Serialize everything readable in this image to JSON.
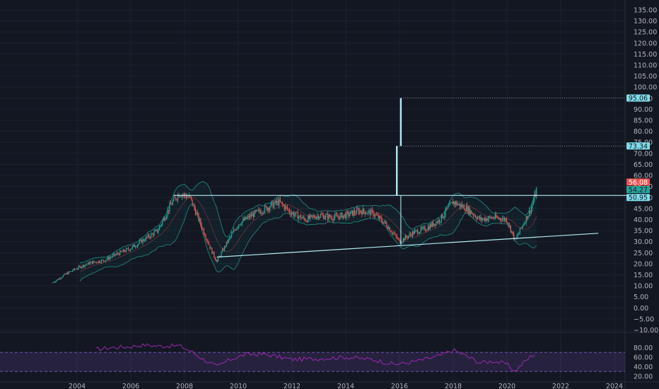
{
  "chart_data": {
    "type": "candlestick",
    "x_ticks": [
      "2004",
      "2006",
      "2008",
      "2010",
      "2012",
      "2014",
      "2016",
      "2018",
      "2020",
      "2022",
      "2024"
    ],
    "y_ticks": [
      "135.00",
      "130.00",
      "125.00",
      "120.00",
      "115.00",
      "110.00",
      "105.00",
      "100.00",
      "95.00",
      "90.00",
      "85.00",
      "80.00",
      "75.00",
      "70.00",
      "65.00",
      "60.00",
      "55.00",
      "50.00",
      "45.00",
      "40.00",
      "35.00",
      "30.00",
      "25.00",
      "20.00",
      "15.00",
      "10.00",
      "5.00",
      "0.00",
      "−5.00",
      "−10.00"
    ],
    "ylim": [
      -10,
      137
    ],
    "xlim": [
      2002.4,
      2024.5
    ],
    "price_tags": [
      {
        "label": "95.06",
        "value": 95.06,
        "color": "#80deea",
        "text_color": "#131722"
      },
      {
        "label": "73.34",
        "value": 73.34,
        "color": "#80deea",
        "text_color": "#131722"
      },
      {
        "label": "56.08",
        "value": 56.08,
        "color": "#ef5350",
        "text_color": "#ffffff"
      },
      {
        "label": "54.27",
        "value": 54.27,
        "color": "#26a69a",
        "text_color": "#131722"
      },
      {
        "label": "50.95",
        "value": 50.95,
        "color": "#80deea",
        "text_color": "#131722"
      }
    ],
    "horizontal_levels": [
      95.06,
      73.34,
      50.95
    ],
    "trendline": {
      "from": [
        2009.2,
        23.0
      ],
      "to": [
        2023.4,
        33.8
      ]
    },
    "resistance_line": {
      "from": [
        2007.6,
        50.95
      ],
      "to": [
        2024.5,
        50.95
      ]
    },
    "projection_bars": [
      {
        "x": 2015.9,
        "from": 50.95,
        "to": 73.34
      },
      {
        "x": 2016.05,
        "from": 73.34,
        "to": 95.06
      }
    ],
    "price_anchors": [
      [
        2003.1,
        11.5
      ],
      [
        2003.6,
        15.5
      ],
      [
        2004.0,
        18.0
      ],
      [
        2004.5,
        20.5
      ],
      [
        2005.0,
        21.5
      ],
      [
        2005.5,
        24.5
      ],
      [
        2006.0,
        27.0
      ],
      [
        2006.5,
        31.0
      ],
      [
        2007.0,
        35.0
      ],
      [
        2007.5,
        47.0
      ],
      [
        2007.8,
        52.0
      ],
      [
        2008.2,
        50.0
      ],
      [
        2008.6,
        38.0
      ],
      [
        2009.0,
        26.0
      ],
      [
        2009.2,
        21.0
      ],
      [
        2009.6,
        30.0
      ],
      [
        2010.0,
        38.0
      ],
      [
        2010.5,
        42.0
      ],
      [
        2011.0,
        45.0
      ],
      [
        2011.5,
        48.0
      ],
      [
        2012.0,
        43.0
      ],
      [
        2012.5,
        40.0
      ],
      [
        2013.0,
        42.0
      ],
      [
        2013.5,
        41.0
      ],
      [
        2014.0,
        42.0
      ],
      [
        2014.5,
        44.0
      ],
      [
        2015.0,
        43.0
      ],
      [
        2015.5,
        38.0
      ],
      [
        2016.0,
        30.0
      ],
      [
        2016.5,
        34.0
      ],
      [
        2017.0,
        36.0
      ],
      [
        2017.5,
        40.0
      ],
      [
        2018.0,
        48.0
      ],
      [
        2018.5,
        45.0
      ],
      [
        2019.0,
        40.0
      ],
      [
        2019.5,
        41.0
      ],
      [
        2020.0,
        40.0
      ],
      [
        2020.3,
        30.5
      ],
      [
        2020.6,
        38.0
      ],
      [
        2020.9,
        45.0
      ],
      [
        2021.1,
        53.0
      ]
    ],
    "rsi": {
      "ylim": [
        15,
        90
      ],
      "y_ticks": [
        "80.00",
        "60.00",
        "40.00",
        "20.00"
      ],
      "bands": [
        70,
        30
      ],
      "anchors": [
        [
          2004.7,
          76
        ],
        [
          2005.3,
          80
        ],
        [
          2006.0,
          82
        ],
        [
          2006.5,
          86
        ],
        [
          2007.0,
          83
        ],
        [
          2007.8,
          84
        ],
        [
          2008.3,
          70
        ],
        [
          2008.8,
          52
        ],
        [
          2009.2,
          40
        ],
        [
          2009.7,
          55
        ],
        [
          2010.3,
          66
        ],
        [
          2011.0,
          66
        ],
        [
          2012.0,
          55
        ],
        [
          2013.0,
          57
        ],
        [
          2014.0,
          60
        ],
        [
          2015.0,
          55
        ],
        [
          2015.8,
          45
        ],
        [
          2016.3,
          48
        ],
        [
          2017.0,
          56
        ],
        [
          2017.5,
          63
        ],
        [
          2018.0,
          75
        ],
        [
          2018.5,
          62
        ],
        [
          2019.0,
          48
        ],
        [
          2019.5,
          52
        ],
        [
          2020.0,
          45
        ],
        [
          2020.3,
          30
        ],
        [
          2020.6,
          48
        ],
        [
          2020.9,
          62
        ],
        [
          2021.1,
          70
        ]
      ]
    }
  }
}
